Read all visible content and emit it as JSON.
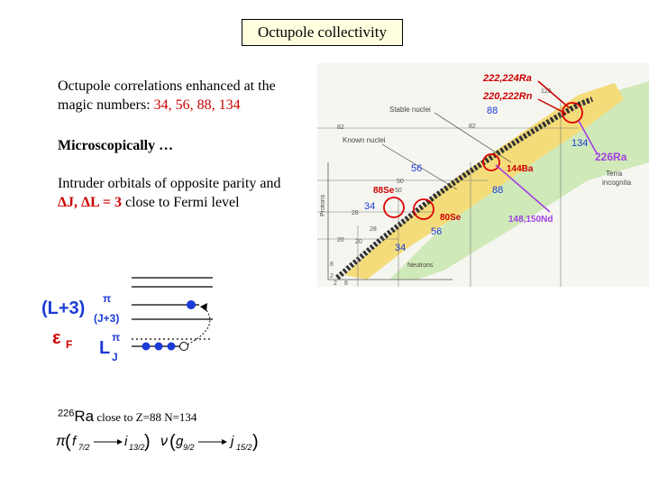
{
  "title": "Octupole collectivity",
  "intro": {
    "line1": "Octupole correlations enhanced at the",
    "line2_prefix": "magic numbers: ",
    "magic_numbers": "34, 56, 88, 134"
  },
  "microscopic": "Microscopically …",
  "intruder": {
    "line1": "Intruder orbitals of opposite parity and",
    "condition": "ΔJ, ΔL = 3",
    "suffix": " close to Fermi level"
  },
  "chart": {
    "labels": {
      "ra_rn_top_ra": "222,224Ra",
      "ra_rn_top_rn": "220,222Rn",
      "stable": "Stable nuclei",
      "known": "Known nuclei",
      "protons": "Protons",
      "neutrons": "Neutrons",
      "terra": "Terra",
      "incognita": "incognita",
      "ra226": "226Ra",
      "ba": "144Ba",
      "nd": "148,150Nd",
      "se88": "88Se",
      "se80": "80Se"
    },
    "numbers": {
      "n88_top": "88",
      "n134": "134",
      "n56": "56",
      "n34_left": "34",
      "n88_mid": "88",
      "n56_bottom": "56",
      "n34_bottom": "34"
    },
    "axis_ticks": {
      "p82": "82",
      "p50": "50",
      "p28": "28",
      "p20": "20",
      "p8": "8",
      "p2": "2",
      "n126": "126",
      "n2": "2",
      "n8": "8",
      "n20": "20",
      "n28": "28",
      "n50": "50",
      "n82": "82"
    }
  },
  "levels": {
    "upper_label": "(L+3)",
    "upper_sub": "(J+3)",
    "upper_sup": "π",
    "fermi": "ε",
    "fermi_sub": "F",
    "lower_label": "L",
    "lower_sub": "J",
    "lower_sup": "π"
  },
  "ra_line": {
    "mass": "226",
    "element": "Ra",
    "text": " close to Z=88 N=134"
  },
  "formula": {
    "pi": "π",
    "f": "f",
    "f_sub": "7/2",
    "i": "i",
    "i_sub": "13/2",
    "nu": "ν",
    "g": "g",
    "g_sub": "9/2",
    "j": "j",
    "j_sub": "15/2"
  },
  "colors": {
    "red": "#cc0000",
    "purple": "#a040e0",
    "box_bg": "#ffffe0",
    "level_blue": "#1a3bd6"
  }
}
